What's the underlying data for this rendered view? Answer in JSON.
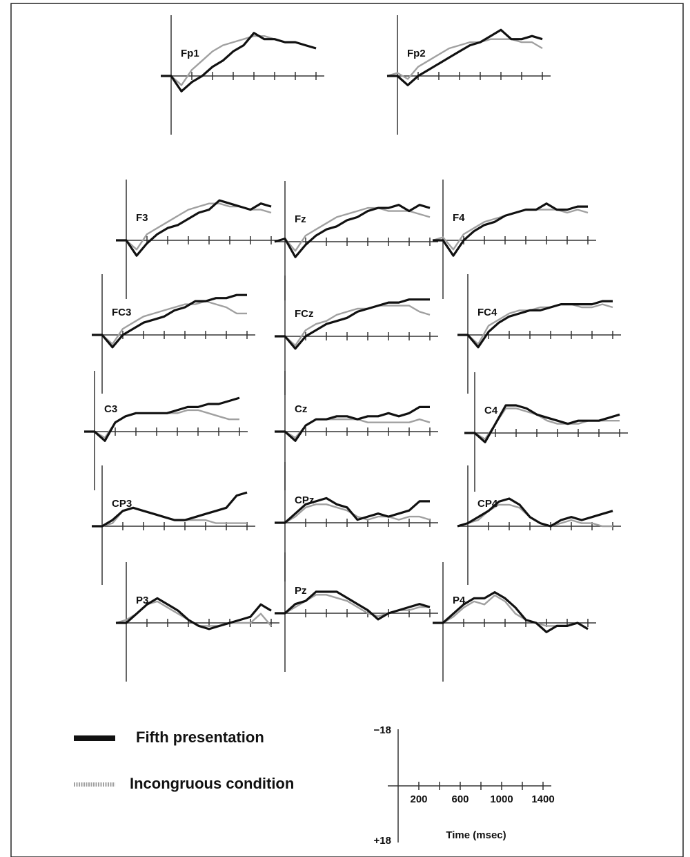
{
  "chart_data": {
    "type": "line",
    "x": [
      -100,
      0,
      100,
      200,
      300,
      400,
      500,
      600,
      700,
      800,
      900,
      1000,
      1100,
      1200,
      1300,
      1400
    ],
    "xlim": [
      -100,
      1480
    ],
    "xticks": [
      200,
      {
        "value": 400,
        "label": null
      },
      600,
      {
        "value": 800,
        "label": null
      },
      1000,
      {
        "value": 1200,
        "label": null
      },
      1400
    ],
    "xlabel": "Time (msec)",
    "ylim": [
      -18,
      18
    ],
    "y_inverted": true,
    "yticks": [
      {
        "value": -18,
        "label": "−18"
      },
      {
        "value": 18,
        "label": "+18"
      }
    ],
    "series": [
      {
        "name": "Fifth presentation",
        "color": "#111111"
      },
      {
        "name": "Incongruous condition",
        "color": "#a0a0a0"
      }
    ],
    "panels": [
      {
        "title": "Fp1",
        "values": [
          [
            0,
            0,
            5,
            2,
            0,
            -3,
            -5,
            -8,
            -10,
            -14,
            -12,
            -12,
            -11,
            -11,
            -10,
            -9
          ],
          [
            0,
            0,
            3,
            -2,
            -5,
            -8,
            -10,
            -11,
            -12,
            -13,
            -13,
            -12,
            -11,
            -11,
            -10,
            -9
          ]
        ]
      },
      {
        "title": "Fp2",
        "values": [
          [
            0,
            0,
            3,
            0,
            -2,
            -4,
            -6,
            -8,
            -10,
            -11,
            -13,
            -15,
            -12,
            -12,
            -13,
            -12
          ],
          [
            0,
            -1,
            1,
            -3,
            -5,
            -7,
            -9,
            -10,
            -11,
            -11,
            -12,
            -12,
            -12,
            -11,
            -11,
            -9
          ]
        ]
      },
      {
        "title": "F3",
        "values": [
          [
            0,
            0,
            5,
            1,
            -2,
            -4,
            -5,
            -7,
            -9,
            -10,
            -13,
            -12,
            -11,
            -10,
            -12,
            -11
          ],
          [
            0,
            0,
            3,
            -2,
            -4,
            -6,
            -8,
            -10,
            -11,
            -12,
            -12,
            -11,
            -11,
            -10,
            -10,
            -9
          ]
        ]
      },
      {
        "title": "Fz",
        "values": [
          [
            0,
            -1,
            5,
            1,
            -2,
            -4,
            -5,
            -7,
            -8,
            -10,
            -11,
            -11,
            -12,
            -10,
            -12,
            -11
          ],
          [
            0,
            -1,
            3,
            -2,
            -4,
            -6,
            -8,
            -9,
            -10,
            -11,
            -11,
            -10,
            -10,
            -10,
            -9,
            -8
          ]
        ]
      },
      {
        "title": "F4",
        "values": [
          [
            0,
            0,
            5,
            0,
            -3,
            -5,
            -6,
            -8,
            -9,
            -10,
            -10,
            -12,
            -10,
            -10,
            -11,
            -11
          ],
          [
            0,
            -1,
            3,
            -2,
            -4,
            -6,
            -7,
            -8,
            -9,
            -10,
            -10,
            -10,
            -10,
            -9,
            -10,
            -9
          ]
        ]
      },
      {
        "title": "FC3",
        "values": [
          [
            0,
            0,
            4,
            0,
            -2,
            -4,
            -5,
            -6,
            -8,
            -9,
            -11,
            -11,
            -12,
            -12,
            -13,
            -13
          ],
          [
            0,
            0,
            3,
            -2,
            -4,
            -6,
            -7,
            -8,
            -9,
            -10,
            -10,
            -11,
            -10,
            -9,
            -7,
            -7
          ]
        ]
      },
      {
        "title": "FCz",
        "values": [
          [
            0,
            0,
            4,
            0,
            -2,
            -4,
            -5,
            -6,
            -8,
            -9,
            -10,
            -11,
            -11,
            -12,
            -12,
            -12
          ],
          [
            0,
            0,
            3,
            -2,
            -4,
            -5,
            -7,
            -8,
            -9,
            -9,
            -10,
            -10,
            -10,
            -10,
            -8,
            -7
          ]
        ]
      },
      {
        "title": "FC4",
        "values": [
          [
            0,
            0,
            4,
            -1,
            -4,
            -6,
            -7,
            -8,
            -8,
            -9,
            -10,
            -10,
            -10,
            -10,
            -11,
            -11
          ],
          [
            0,
            0,
            3,
            -3,
            -5,
            -7,
            -8,
            -8,
            -9,
            -9,
            -10,
            -10,
            -9,
            -9,
            -10,
            -9
          ]
        ]
      },
      {
        "title": "C3",
        "values": [
          [
            0,
            0,
            3,
            -3,
            -5,
            -6,
            -6,
            -6,
            -6,
            -7,
            -8,
            -8,
            -9,
            -9,
            -10,
            -11
          ],
          [
            0,
            0,
            2,
            -3,
            -5,
            -6,
            -6,
            -6,
            -6,
            -6,
            -7,
            -7,
            -6,
            -5,
            -4,
            -4
          ]
        ]
      },
      {
        "title": "Cz",
        "values": [
          [
            0,
            0,
            3,
            -2,
            -4,
            -4,
            -5,
            -5,
            -4,
            -5,
            -5,
            -6,
            -5,
            -6,
            -8,
            -8
          ],
          [
            0,
            0,
            2,
            -2,
            -4,
            -4,
            -4,
            -4,
            -4,
            -3,
            -3,
            -3,
            -3,
            -3,
            -4,
            -3
          ]
        ]
      },
      {
        "title": "C4",
        "values": [
          [
            0,
            0,
            3,
            -3,
            -9,
            -9,
            -8,
            -6,
            -5,
            -4,
            -3,
            -4,
            -4,
            -4,
            -5,
            -6
          ],
          [
            0,
            0,
            2,
            -3,
            -8,
            -8,
            -7,
            -6,
            -4,
            -3,
            -3,
            -3,
            -4,
            -4,
            -4,
            -4
          ]
        ]
      },
      {
        "title": "CP3",
        "values": [
          [
            0,
            0,
            -2,
            -5,
            -6,
            -5,
            -4,
            -3,
            -2,
            -2,
            -3,
            -4,
            -5,
            -6,
            -10,
            -11
          ],
          [
            0,
            0,
            -1,
            -5,
            -6,
            -5,
            -4,
            -3,
            -2,
            -2,
            -2,
            -2,
            -1,
            -1,
            -1,
            -1
          ]
        ]
      },
      {
        "title": "CPz",
        "values": [
          [
            0,
            0,
            -3,
            -6,
            -7,
            -8,
            -6,
            -5,
            -1,
            -2,
            -3,
            -2,
            -3,
            -4,
            -7,
            -7
          ],
          [
            0,
            0,
            -2,
            -5,
            -6,
            -6,
            -5,
            -4,
            -2,
            -1,
            -2,
            -2,
            -1,
            -2,
            -2,
            -1
          ]
        ]
      },
      {
        "title": "CP4",
        "values": [
          [
            0,
            -1,
            -3,
            -5,
            -8,
            -9,
            -7,
            -3,
            -1,
            0,
            -2,
            -3,
            -2,
            -3,
            -4,
            -5
          ],
          [
            0,
            -1,
            -2,
            -5,
            -7,
            -7,
            -6,
            -3,
            -1,
            0,
            -1,
            -2,
            -1,
            -1,
            0,
            0
          ]
        ]
      },
      {
        "title": "P3",
        "values": [
          [
            0,
            0,
            -3,
            -6,
            -8,
            -6,
            -4,
            -1,
            1,
            2,
            1,
            0,
            -1,
            -2,
            -6,
            -4
          ],
          [
            0,
            -1,
            -3,
            -6,
            -7,
            -5,
            -3,
            -1,
            1,
            1,
            1,
            0,
            0,
            0,
            -3,
            1
          ]
        ]
      },
      {
        "title": "Pz",
        "values": [
          [
            0,
            0,
            -3,
            -4,
            -7,
            -7,
            -7,
            -5,
            -3,
            -1,
            2,
            0,
            -1,
            -2,
            -3,
            -2
          ],
          [
            0,
            0,
            -2,
            -4,
            -6,
            -6,
            -5,
            -4,
            -2,
            0,
            1,
            0,
            -1,
            -1,
            -2,
            -2
          ]
        ]
      },
      {
        "title": "P4",
        "values": [
          [
            0,
            0,
            -3,
            -6,
            -8,
            -8,
            -10,
            -8,
            -5,
            -1,
            0,
            3,
            1,
            1,
            0,
            2
          ],
          [
            0,
            0,
            -2,
            -5,
            -7,
            -6,
            -9,
            -7,
            -3,
            -1,
            0,
            1,
            1,
            1,
            0,
            2
          ]
        ]
      }
    ]
  }
}
